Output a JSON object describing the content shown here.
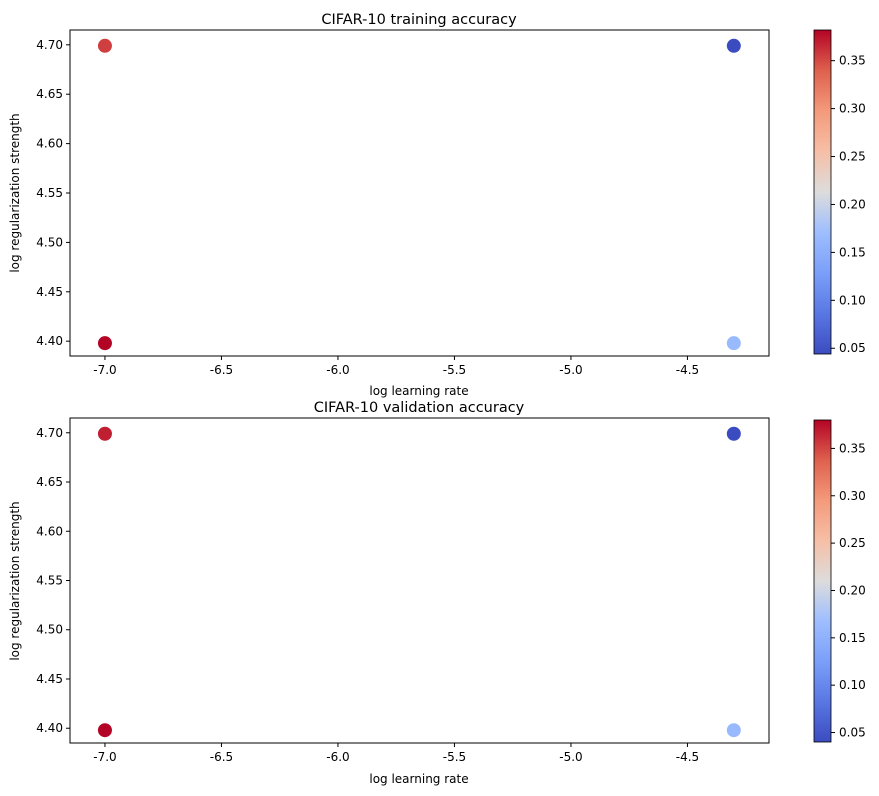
{
  "chart_data": [
    {
      "type": "scatter",
      "title": "CIFAR-10 training accuracy",
      "xlabel": "log learning rate",
      "ylabel": "log regularization strength",
      "xlim": [
        -7.15,
        -4.15
      ],
      "ylim": [
        4.385,
        4.715
      ],
      "xticks": [
        "-7.0",
        "-6.5",
        "-6.0",
        "-5.5",
        "-5.0",
        "-4.5"
      ],
      "yticks": [
        "4.40",
        "4.45",
        "4.50",
        "4.55",
        "4.60",
        "4.65",
        "4.70"
      ],
      "grid": false,
      "colormap": "coolwarm",
      "colorbar": {
        "min": 0.044,
        "max": 0.382,
        "ticks": [
          "0.05",
          "0.10",
          "0.15",
          "0.20",
          "0.25",
          "0.30",
          "0.35"
        ]
      },
      "points": [
        {
          "x": -7.0,
          "y": 4.699,
          "value": 0.355
        },
        {
          "x": -7.0,
          "y": 4.398,
          "value": 0.382
        },
        {
          "x": -4.301,
          "y": 4.699,
          "value": 0.044
        },
        {
          "x": -4.301,
          "y": 4.398,
          "value": 0.165
        }
      ]
    },
    {
      "type": "scatter",
      "title": "CIFAR-10 validation accuracy",
      "xlabel": "log learning rate",
      "ylabel": "log regularization strength",
      "xlim": [
        -7.15,
        -4.15
      ],
      "ylim": [
        4.385,
        4.715
      ],
      "xticks": [
        "-7.0",
        "-6.5",
        "-6.0",
        "-5.5",
        "-5.0",
        "-4.5"
      ],
      "yticks": [
        "4.40",
        "4.45",
        "4.50",
        "4.55",
        "4.60",
        "4.65",
        "4.70"
      ],
      "grid": false,
      "colormap": "coolwarm",
      "colorbar": {
        "min": 0.04,
        "max": 0.38,
        "ticks": [
          "0.05",
          "0.10",
          "0.15",
          "0.20",
          "0.25",
          "0.30",
          "0.35"
        ]
      },
      "points": [
        {
          "x": -7.0,
          "y": 4.699,
          "value": 0.368
        },
        {
          "x": -7.0,
          "y": 4.398,
          "value": 0.38
        },
        {
          "x": -4.301,
          "y": 4.699,
          "value": 0.04
        },
        {
          "x": -4.301,
          "y": 4.398,
          "value": 0.16
        }
      ]
    }
  ]
}
